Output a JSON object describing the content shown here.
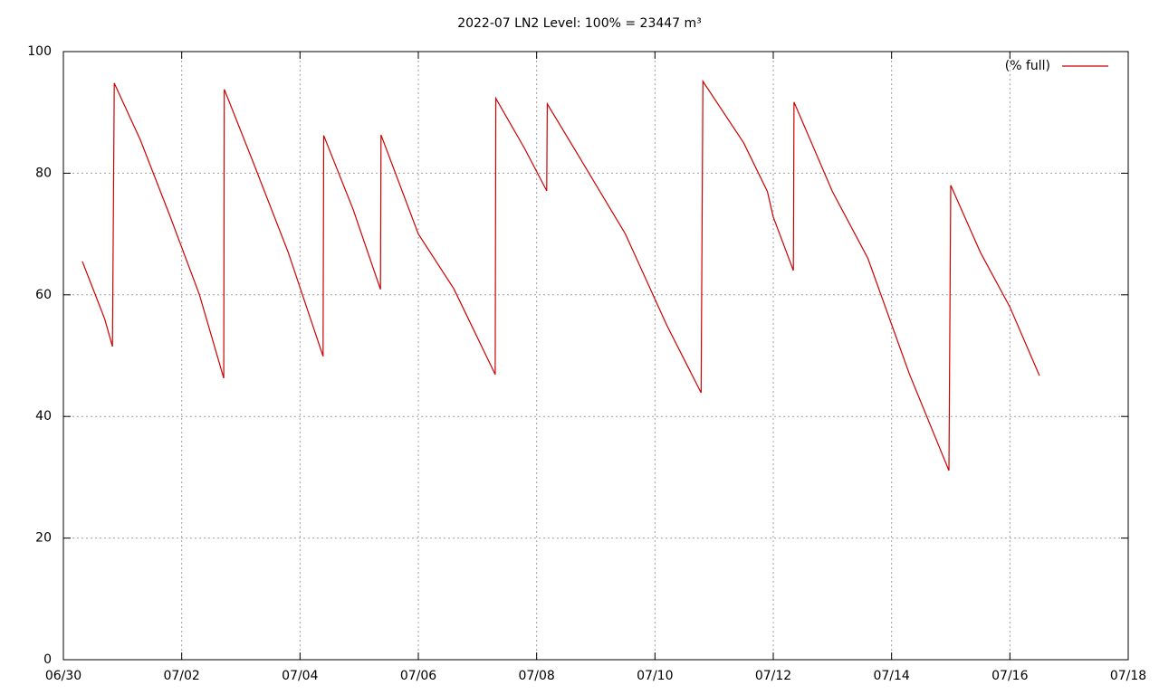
{
  "chart_data": {
    "type": "line",
    "title": "2022-07 LN2 Level: 100% = 23447 m³",
    "x": [
      0.32,
      0.5,
      0.7,
      0.83,
      0.86,
      1.3,
      1.8,
      2.3,
      2.71,
      2.72,
      3.2,
      3.8,
      4.39,
      4.4,
      4.9,
      5.36,
      5.37,
      6.0,
      6.6,
      7.3,
      7.31,
      7.8,
      8.17,
      8.18,
      8.7,
      9.5,
      10.2,
      10.78,
      10.81,
      11.5,
      11.9,
      12.0,
      12.34,
      12.35,
      13.0,
      13.6,
      14.3,
      14.97,
      15.0,
      15.5,
      16.0,
      16.5
    ],
    "series": [
      {
        "name": "(% full)",
        "color": "#cc0000",
        "values": [
          65.5,
          61,
          56,
          51.5,
          94.8,
          85.5,
          73,
          60,
          46.3,
          93.8,
          82,
          67,
          49.9,
          86.2,
          74,
          60.9,
          86.3,
          70,
          61,
          46.9,
          92.3,
          84,
          77.1,
          91.4,
          83,
          70,
          55,
          43.9,
          95.1,
          85,
          77,
          72.8,
          64,
          91.7,
          77,
          66,
          47,
          31.1,
          78,
          67,
          58,
          46.7
        ]
      }
    ],
    "xlim": [
      0,
      18
    ],
    "xticks": [
      {
        "value": 0,
        "label": "06/30"
      },
      {
        "value": 2,
        "label": "07/02"
      },
      {
        "value": 4,
        "label": "07/04"
      },
      {
        "value": 6,
        "label": "07/06"
      },
      {
        "value": 8,
        "label": "07/08"
      },
      {
        "value": 10,
        "label": "07/10"
      },
      {
        "value": 12,
        "label": "07/12"
      },
      {
        "value": 14,
        "label": "07/14"
      },
      {
        "value": 16,
        "label": "07/16"
      },
      {
        "value": 18,
        "label": "07/18"
      }
    ],
    "ylim": [
      0,
      100
    ],
    "yticks": [
      0,
      20,
      40,
      60,
      80,
      100
    ],
    "grid": true,
    "legend": "top-right"
  }
}
